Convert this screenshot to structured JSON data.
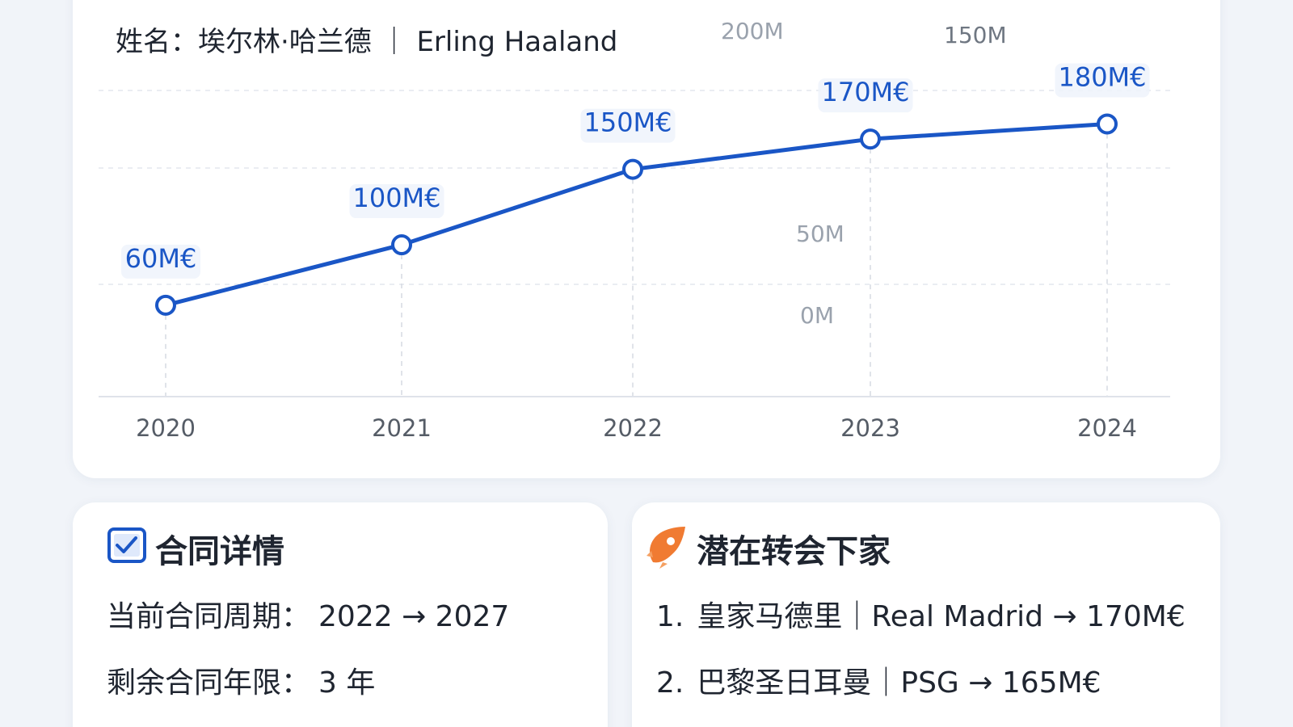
{
  "player": {
    "name_label": "姓名：",
    "name_cn": "埃尔林·哈兰德",
    "separator": "｜",
    "name_en": "Erling Haaland"
  },
  "background_labels": {
    "top_left": "200M",
    "top_right": "150M",
    "middle": "50M",
    "bottom": "0M"
  },
  "colors": {
    "accent": "#1a56c6",
    "label_bg": "#eef3fb",
    "transfer_icon": "#f07b32"
  },
  "chart_data": {
    "type": "line",
    "title": "",
    "xlabel": "",
    "ylabel": "",
    "categories": [
      "2020",
      "2021",
      "2022",
      "2023",
      "2024"
    ],
    "series": [
      {
        "values": [
          60,
          100,
          150,
          170,
          180
        ],
        "labels": [
          "60M€",
          "100M€",
          "150M€",
          "170M€",
          "180M€"
        ]
      }
    ],
    "ylim": [
      0,
      230
    ],
    "grid": true
  },
  "contract": {
    "icon": "checkbox-icon",
    "title": "合同详情",
    "period_label": "当前合同周期：",
    "period_value": "2022 → 2027",
    "remaining_label": "剩余合同年限：",
    "remaining_value": "3 年"
  },
  "transfer": {
    "icon": "rocket-icon",
    "title": "潜在转会下家",
    "items": [
      {
        "rank": "1.",
        "club": "皇家马德里｜Real Madrid → 170M€"
      },
      {
        "rank": "2.",
        "club": "巴黎圣日耳曼｜PSG → 165M€"
      }
    ]
  }
}
